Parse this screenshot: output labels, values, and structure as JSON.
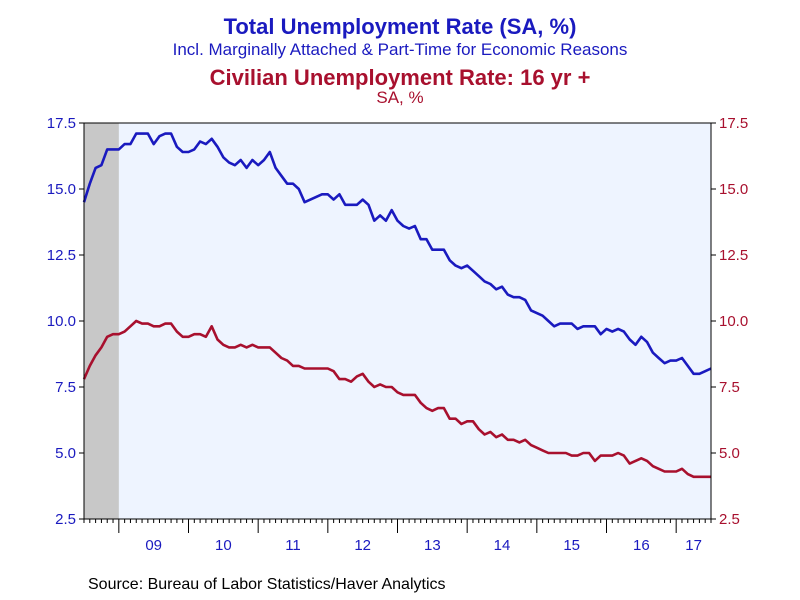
{
  "chart_data": {
    "type": "line",
    "title": "Total Unemployment Rate (SA, %)",
    "subtitle": "Incl. Marginally Attached & Part-Time for Economic Reasons",
    "title2": "Civilian Unemployment Rate: 16 yr +",
    "subtitle2": "SA, %",
    "source": "Source:  Bureau of Labor Statistics/Haver Analytics",
    "x_tick_labels": [
      "09",
      "10",
      "11",
      "12",
      "13",
      "14",
      "15",
      "16",
      "17"
    ],
    "y_tick_labels": [
      "2.5",
      "5.0",
      "7.5",
      "10.0",
      "12.5",
      "15.0",
      "17.5"
    ],
    "ylim": [
      2.5,
      17.5
    ],
    "y_ticks": [
      2.5,
      5.0,
      7.5,
      10.0,
      12.5,
      15.0,
      17.5
    ],
    "xlim": [
      2008.5,
      2017.5
    ],
    "recession": {
      "start": 2008.5,
      "end": 2009.0,
      "color": "#c8c8c8"
    },
    "plot_background": "#eef4ff",
    "series": [
      {
        "name": "Total Unemployment Rate (SA, %)",
        "color": "#1a1abf",
        "axis": "left",
        "start": 2008.5,
        "step": 0.0833333,
        "values": [
          14.5,
          15.2,
          15.8,
          15.9,
          16.5,
          16.5,
          16.5,
          16.7,
          16.7,
          17.1,
          17.1,
          17.1,
          16.7,
          17.0,
          17.1,
          17.1,
          16.6,
          16.4,
          16.4,
          16.5,
          16.8,
          16.7,
          16.9,
          16.6,
          16.2,
          16.0,
          15.9,
          16.1,
          15.8,
          16.1,
          15.9,
          16.1,
          16.4,
          15.8,
          15.5,
          15.2,
          15.2,
          15.0,
          14.5,
          14.6,
          14.7,
          14.8,
          14.8,
          14.6,
          14.8,
          14.4,
          14.4,
          14.4,
          14.6,
          14.4,
          13.8,
          14.0,
          13.8,
          14.2,
          13.8,
          13.6,
          13.5,
          13.6,
          13.1,
          13.1,
          12.7,
          12.7,
          12.7,
          12.3,
          12.1,
          12.0,
          12.1,
          11.9,
          11.7,
          11.5,
          11.4,
          11.2,
          11.3,
          11.0,
          10.9,
          10.9,
          10.8,
          10.4,
          10.3,
          10.2,
          10.0,
          9.8,
          9.9,
          9.9,
          9.9,
          9.7,
          9.8,
          9.8,
          9.8,
          9.5,
          9.7,
          9.6,
          9.7,
          9.6,
          9.3,
          9.1,
          9.4,
          9.2,
          8.8,
          8.6,
          8.4,
          8.5,
          8.5,
          8.6,
          8.3,
          8.0,
          8.0,
          8.1,
          8.2
        ]
      },
      {
        "name": "Civilian Unemployment Rate: 16 yr +",
        "color": "#a8102e",
        "axis": "right",
        "start": 2008.5,
        "step": 0.0833333,
        "values": [
          7.8,
          8.3,
          8.7,
          9.0,
          9.4,
          9.5,
          9.5,
          9.6,
          9.8,
          10.0,
          9.9,
          9.9,
          9.8,
          9.8,
          9.9,
          9.9,
          9.6,
          9.4,
          9.4,
          9.5,
          9.5,
          9.4,
          9.8,
          9.3,
          9.1,
          9.0,
          9.0,
          9.1,
          9.0,
          9.1,
          9.0,
          9.0,
          9.0,
          8.8,
          8.6,
          8.5,
          8.3,
          8.3,
          8.2,
          8.2,
          8.2,
          8.2,
          8.2,
          8.1,
          7.8,
          7.8,
          7.7,
          7.9,
          8.0,
          7.7,
          7.5,
          7.6,
          7.5,
          7.5,
          7.3,
          7.2,
          7.2,
          7.2,
          6.9,
          6.7,
          6.6,
          6.7,
          6.7,
          6.3,
          6.3,
          6.1,
          6.2,
          6.2,
          5.9,
          5.7,
          5.8,
          5.6,
          5.7,
          5.5,
          5.5,
          5.4,
          5.5,
          5.3,
          5.2,
          5.1,
          5.0,
          5.0,
          5.0,
          5.0,
          4.9,
          4.9,
          5.0,
          5.0,
          4.7,
          4.9,
          4.9,
          4.9,
          5.0,
          4.9,
          4.6,
          4.7,
          4.8,
          4.7,
          4.5,
          4.4,
          4.3,
          4.3,
          4.3,
          4.4,
          4.2,
          4.1,
          4.1,
          4.1,
          4.1
        ]
      }
    ]
  }
}
